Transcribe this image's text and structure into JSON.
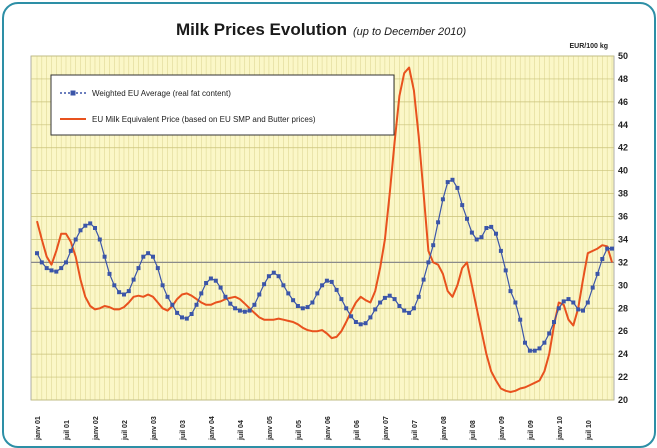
{
  "chart_data": {
    "type": "line",
    "title": "Milk Prices Evolution",
    "subtitle": "(up to December 2010)",
    "ylabel": "EUR/100 kg",
    "ylim": [
      20,
      50
    ],
    "yticks": [
      20,
      22,
      24,
      26,
      28,
      30,
      32,
      34,
      36,
      38,
      40,
      42,
      44,
      46,
      48,
      50
    ],
    "grid": true,
    "reference_line": 32,
    "legend_position": "top-left",
    "x_tick_labels": [
      "janv 01",
      "juil 01",
      "janv 02",
      "juil 02",
      "janv 03",
      "juil 03",
      "janv 04",
      "juil 04",
      "janv 05",
      "juil 05",
      "janv 06",
      "juil 06",
      "janv 07",
      "juil 07",
      "janv 08",
      "juil 08",
      "janv 09",
      "juil 09",
      "janv 10",
      "juil 10"
    ],
    "months_count": 120,
    "series": [
      {
        "name": "Weighted EU Average (real fat content)",
        "color": "#3b55a8",
        "marker": "square",
        "values": [
          32.8,
          32.0,
          31.5,
          31.3,
          31.2,
          31.5,
          32.0,
          33.0,
          34.0,
          34.8,
          35.2,
          35.4,
          35.0,
          34.0,
          32.5,
          31.0,
          30.0,
          29.4,
          29.2,
          29.5,
          30.5,
          31.5,
          32.5,
          32.8,
          32.5,
          31.5,
          30.0,
          29.0,
          28.3,
          27.6,
          27.2,
          27.1,
          27.5,
          28.3,
          29.3,
          30.2,
          30.6,
          30.4,
          29.8,
          29.0,
          28.4,
          28.0,
          27.8,
          27.7,
          27.8,
          28.3,
          29.2,
          30.1,
          30.8,
          31.1,
          30.8,
          30.0,
          29.3,
          28.7,
          28.2,
          28.0,
          28.1,
          28.5,
          29.3,
          30.0,
          30.4,
          30.3,
          29.6,
          28.8,
          28.0,
          27.3,
          26.8,
          26.6,
          26.7,
          27.2,
          27.9,
          28.5,
          28.9,
          29.1,
          28.8,
          28.2,
          27.8,
          27.6,
          28.0,
          29.0,
          30.5,
          32.0,
          33.5,
          35.5,
          37.5,
          39.0,
          39.2,
          38.5,
          37.0,
          35.8,
          34.6,
          34.0,
          34.2,
          35.0,
          35.1,
          34.5,
          33.0,
          31.3,
          29.5,
          28.5,
          27.0,
          25.0,
          24.3,
          24.3,
          24.5,
          25.0,
          25.8,
          26.8,
          28.0,
          28.6,
          28.8,
          28.5,
          27.9,
          27.8,
          28.5,
          29.8,
          31.0,
          32.3,
          33.2,
          33.2
        ]
      },
      {
        "name": "EU Milk Equivalent Price (based on EU SMP and Butter prices)",
        "color": "#e8521e",
        "marker": "none",
        "values": [
          35.6,
          34.0,
          32.5,
          31.8,
          33.0,
          34.5,
          34.5,
          33.8,
          32.5,
          30.5,
          29.0,
          28.2,
          27.9,
          28.0,
          28.2,
          28.1,
          27.9,
          27.9,
          28.1,
          28.5,
          29.0,
          29.1,
          29.0,
          29.2,
          29.0,
          28.5,
          28.0,
          27.8,
          28.2,
          28.8,
          29.2,
          29.3,
          29.1,
          28.8,
          28.5,
          28.3,
          28.3,
          28.5,
          28.6,
          28.8,
          28.9,
          29.0,
          28.8,
          28.4,
          28.0,
          27.6,
          27.2,
          27.0,
          27.0,
          27.0,
          27.1,
          27.0,
          26.9,
          26.8,
          26.6,
          26.3,
          26.1,
          26.0,
          26.0,
          26.1,
          25.8,
          25.4,
          25.5,
          26.0,
          26.8,
          27.7,
          28.5,
          29.0,
          28.7,
          28.5,
          29.5,
          31.5,
          34.0,
          38.0,
          42.5,
          46.5,
          48.5,
          49.0,
          47.0,
          43.0,
          38.0,
          33.0,
          32.0,
          31.8,
          31.0,
          29.5,
          29.0,
          30.0,
          31.5,
          32.0,
          30.0,
          28.0,
          26.0,
          24.0,
          22.5,
          21.7,
          21.0,
          20.8,
          20.7,
          20.8,
          21.0,
          21.1,
          21.3,
          21.5,
          21.7,
          22.5,
          24.0,
          26.5,
          28.5,
          28.3,
          27.0,
          26.5,
          28.0,
          30.5,
          32.8,
          33.0,
          33.2,
          33.5,
          33.4,
          32.0
        ]
      }
    ]
  }
}
